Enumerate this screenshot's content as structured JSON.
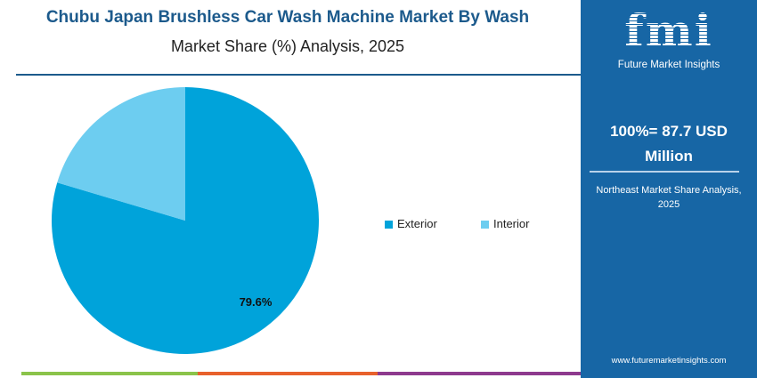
{
  "title": {
    "line1": "Chubu Japan Brushless Car Wash Machine Market By Wash",
    "line2": "Market Share (%) Analysis, 2025"
  },
  "chart_data": {
    "type": "pie",
    "categories": [
      "Exterior",
      "Interior"
    ],
    "values": [
      79.6,
      20.4
    ],
    "colors": [
      "#00a3da",
      "#6dcdf0"
    ],
    "data_labels": [
      "79.6%",
      ""
    ],
    "legend_position": "right"
  },
  "panel": {
    "logo_text": "fmi",
    "logo_subtitle": "Future Market Insights",
    "total_line1": "100%= 87.7 USD",
    "total_line2": "Million",
    "subtitle": "Northeast Market Share Analysis, 2025",
    "url": "www.futuremarketinsights.com",
    "background": "#1766a5"
  },
  "bottom_bar_colors": [
    "#8bc34a",
    "#e8612c",
    "#8e3a8e"
  ]
}
